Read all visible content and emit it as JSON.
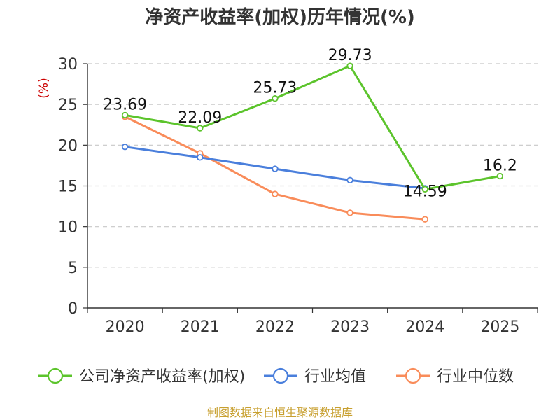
{
  "chart_data": {
    "type": "line",
    "title": "净资产收益率(加权)历年情况(%)",
    "ylabel": "(%)",
    "xlabel": "",
    "categories": [
      "2020",
      "2021",
      "2022",
      "2023",
      "2024",
      "2025"
    ],
    "ylim": [
      0,
      30
    ],
    "yticks": [
      0,
      5,
      10,
      15,
      20,
      25,
      30
    ],
    "grid": true,
    "legend_position": "bottom",
    "series": [
      {
        "name": "公司净资产收益率(加权)",
        "color": "#5cc42c",
        "values": [
          23.69,
          22.09,
          25.73,
          29.73,
          14.59,
          16.2
        ],
        "labels": [
          "23.69",
          "22.09",
          "25.73",
          "29.73",
          "14.59",
          "16.2"
        ]
      },
      {
        "name": "行业均值",
        "color": "#4a7fdc",
        "values": [
          19.8,
          18.5,
          17.1,
          15.7,
          14.7,
          null
        ]
      },
      {
        "name": "行业中位数",
        "color": "#f98c5a",
        "values": [
          23.5,
          19.0,
          14.0,
          11.7,
          10.9,
          null
        ]
      }
    ]
  },
  "source_text": "制图数据来自恒生聚源数据库",
  "colors": {
    "unit_label": "#cc0000",
    "source": "#c8a030",
    "axis": "#333333",
    "grid": "#c8c8c8"
  }
}
